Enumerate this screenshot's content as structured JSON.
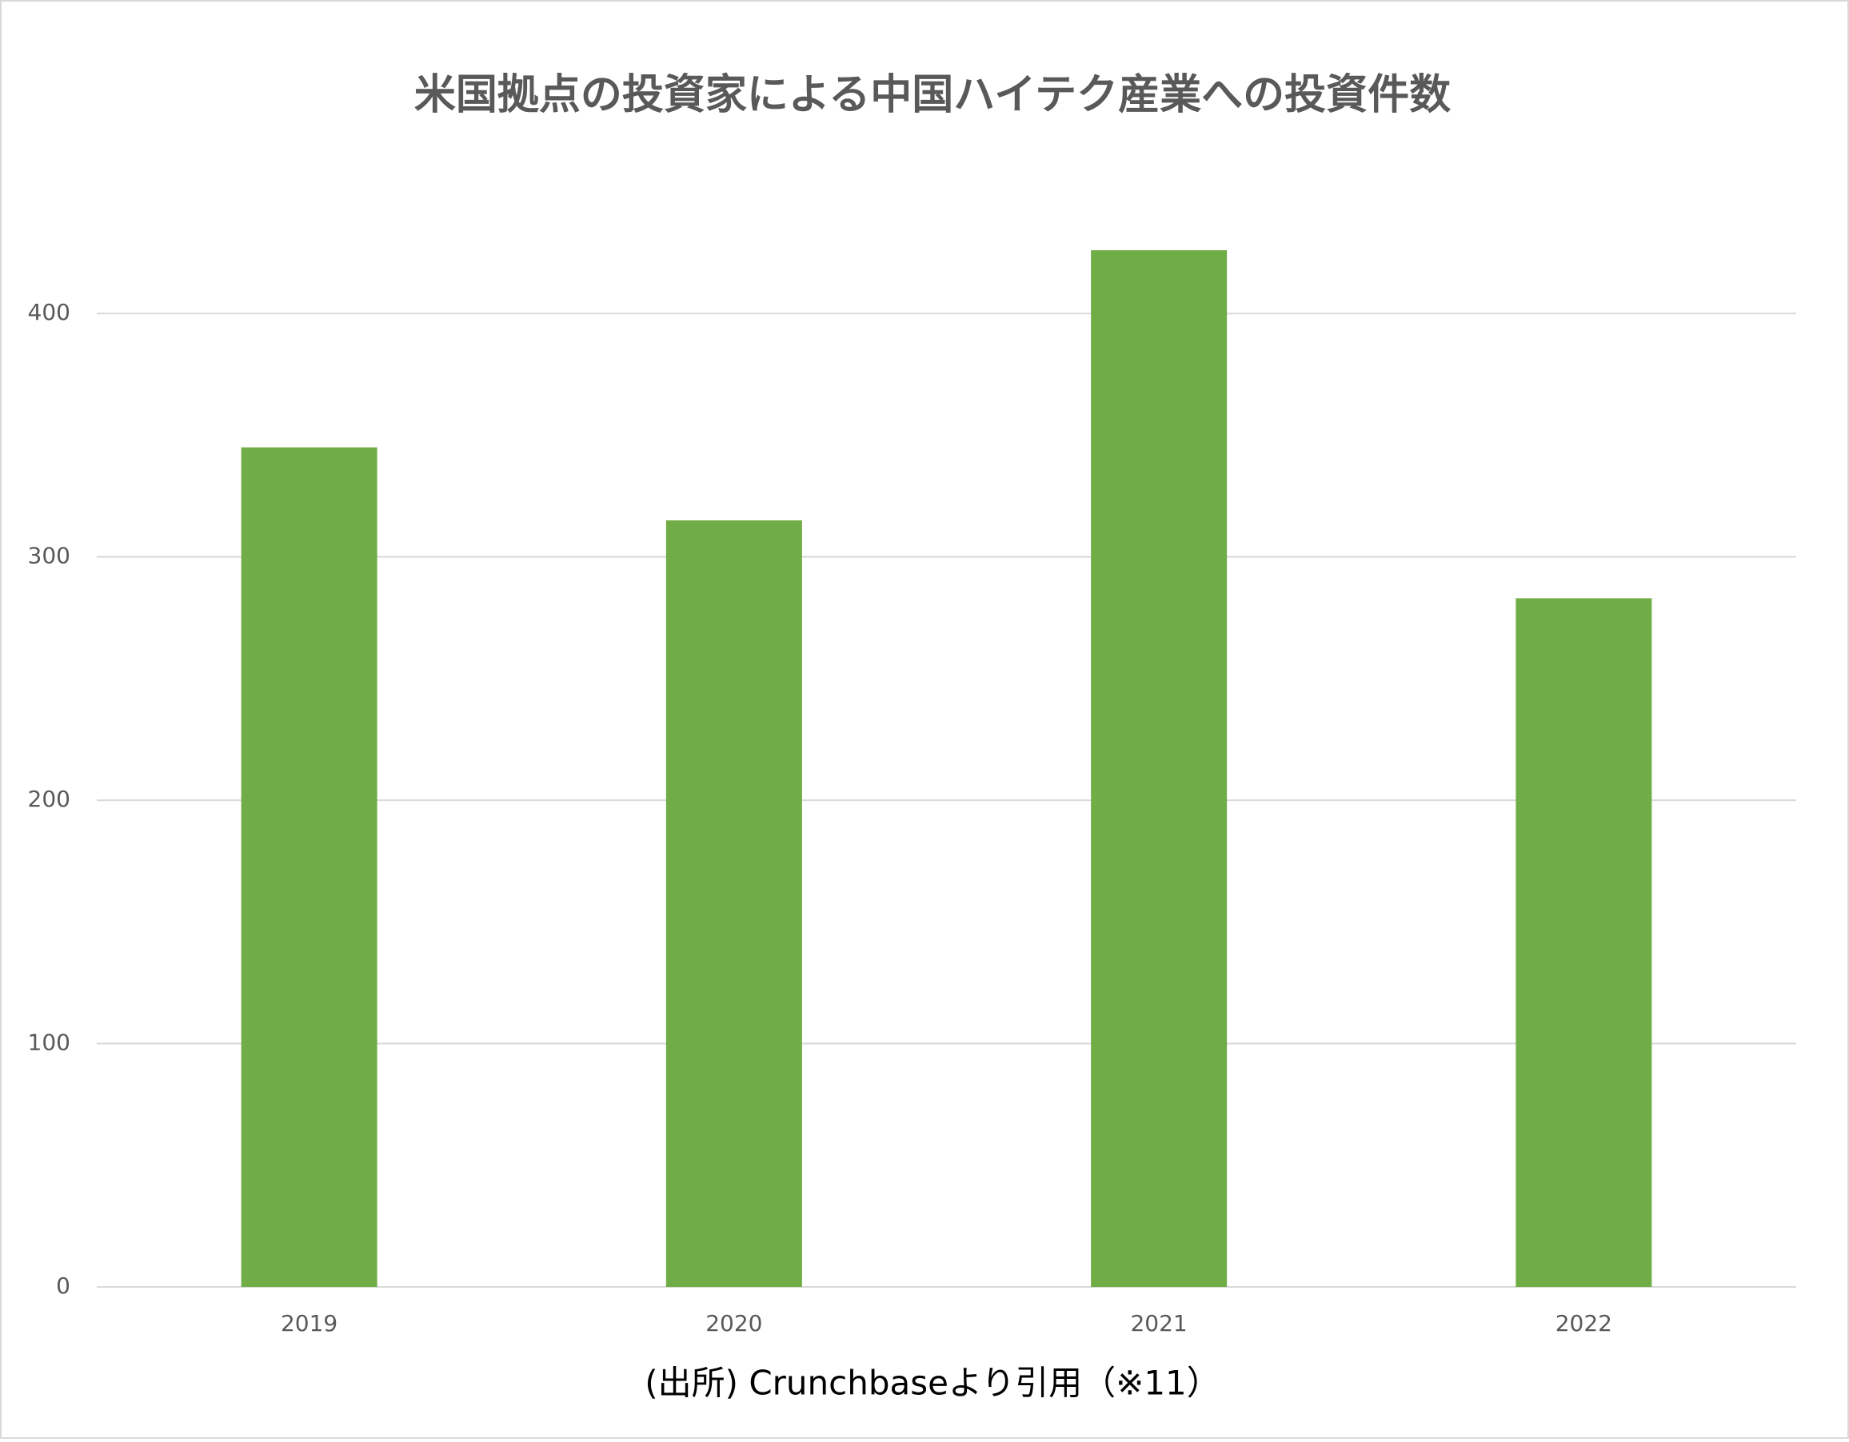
{
  "chart_data": {
    "type": "bar",
    "title": "米国拠点の投資家による中国ハイテク産業への投資件数",
    "categories": [
      "2019",
      "2020",
      "2021",
      "2022"
    ],
    "values": [
      345,
      315,
      426,
      283
    ],
    "color": "#70ad47",
    "ylim": [
      0,
      450
    ],
    "yticks": [
      0,
      100,
      200,
      300,
      400
    ],
    "grid": true,
    "source": "(出所)  Crunchbaseより引用（※11）"
  }
}
